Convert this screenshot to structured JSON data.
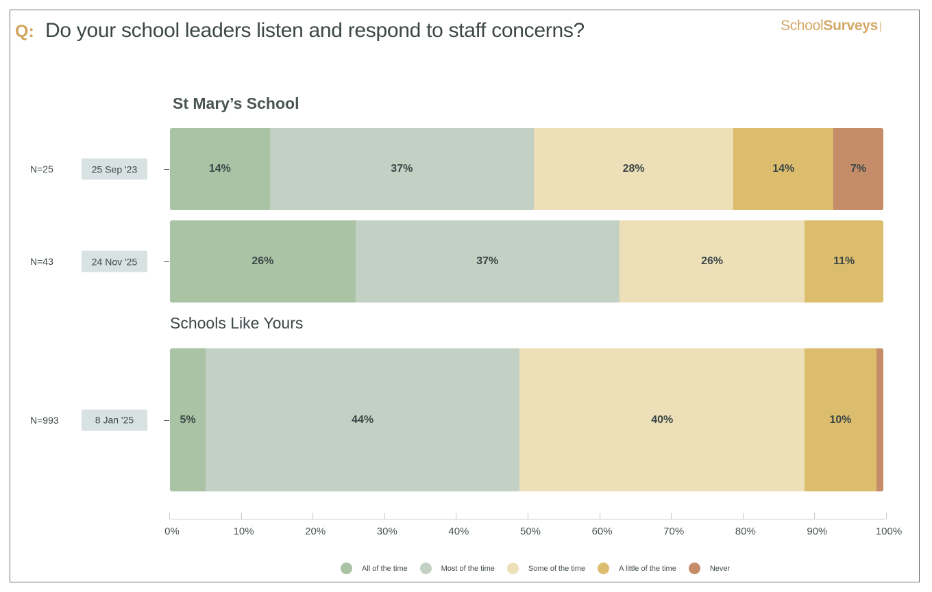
{
  "header": {
    "question_prefix": "Q:",
    "question": "Do your school leaders listen and respond to staff concerns?",
    "logo_regular": "School",
    "logo_bold": "Surveys",
    "logo_icon": "sparkle-icon"
  },
  "colors": {
    "accent": "#d1a45a",
    "All of the time": "#a9c3a4",
    "Most of the time": "#c3d0c4",
    "Some of the time": "#ede0b9",
    "A little of the time": "#dcbd6e",
    "Never": "#c58c6a"
  },
  "chart_data": {
    "type": "bar",
    "orientation": "horizontal",
    "stacked": true,
    "title": "Do your school leaders listen and respond to staff concerns?",
    "xlabel": "",
    "ylabel": "",
    "xlim": [
      0,
      100
    ],
    "x_ticks": [
      "0%",
      "10%",
      "20%",
      "30%",
      "40%",
      "50%",
      "60%",
      "70%",
      "80%",
      "90%",
      "100%"
    ],
    "grid": false,
    "legend_position": "bottom-center",
    "categories_legend": [
      "All of the time",
      "Most of the time",
      "Some of the time",
      "A little of the time",
      "Never"
    ],
    "groups": [
      {
        "title": "St Mary’s School",
        "rows": [
          {
            "n_label": "N=25",
            "date": "25 Sep '23",
            "values": [
              14,
              37,
              28,
              14,
              7
            ],
            "labels": [
              "14%",
              "37%",
              "28%",
              "14%",
              "7%"
            ]
          },
          {
            "n_label": "N=43",
            "date": "24 Nov '25",
            "values": [
              26,
              37,
              26,
              11,
              0
            ],
            "labels": [
              "26%",
              "37%",
              "26%",
              "11%",
              ""
            ]
          }
        ]
      },
      {
        "title": "Schools Like Yours",
        "rows": [
          {
            "n_label": "N=993",
            "date": "8 Jan '25",
            "values": [
              5,
              44,
              40,
              10,
              1
            ],
            "labels": [
              "5%",
              "44%",
              "40%",
              "10%",
              ""
            ]
          }
        ]
      }
    ]
  }
}
